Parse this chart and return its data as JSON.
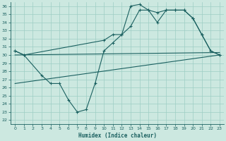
{
  "xlabel": "Humidex (Indice chaleur)",
  "x_ticks": [
    0,
    1,
    2,
    3,
    4,
    5,
    6,
    7,
    8,
    9,
    10,
    11,
    12,
    13,
    14,
    15,
    16,
    17,
    18,
    19,
    20,
    21,
    22,
    23
  ],
  "y_ticks": [
    22,
    23,
    24,
    25,
    26,
    27,
    28,
    29,
    30,
    31,
    32,
    33,
    34,
    35,
    36
  ],
  "xlim": [
    -0.5,
    23.5
  ],
  "ylim": [
    21.5,
    36.5
  ],
  "bg_color": "#cce8e0",
  "grid_color": "#9ecec4",
  "line_color": "#1a6060",
  "line1_x": [
    0,
    1,
    3,
    4,
    5,
    6,
    7,
    8,
    9,
    10,
    11,
    12,
    13,
    14,
    15,
    16,
    17,
    18,
    19,
    20,
    21,
    22,
    23
  ],
  "line1_y": [
    30.5,
    30.0,
    27.5,
    26.5,
    26.5,
    24.5,
    23.0,
    23.3,
    26.5,
    30.5,
    31.5,
    32.5,
    36.0,
    36.2,
    35.5,
    35.2,
    35.5,
    35.5,
    35.5,
    34.5,
    32.5,
    30.5,
    30.0
  ],
  "line2_x": [
    0,
    1,
    10,
    11,
    12,
    13,
    14,
    15,
    16,
    17,
    18,
    19,
    20,
    21,
    22,
    23
  ],
  "line2_y": [
    30.5,
    30.0,
    31.8,
    32.5,
    32.5,
    33.5,
    35.5,
    35.5,
    34.0,
    35.5,
    35.5,
    35.5,
    34.5,
    32.5,
    30.5,
    30.0
  ],
  "line3_x": [
    0,
    23
  ],
  "line3_y": [
    30.0,
    30.3
  ],
  "line4_x": [
    0,
    23
  ],
  "line4_y": [
    26.5,
    30.0
  ]
}
